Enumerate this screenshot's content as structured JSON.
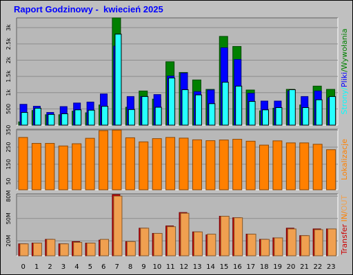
{
  "title": "Raport Godzinowy -  kwiecień 2025",
  "colors": {
    "background": "#c0c0c0",
    "plot_area": "#b8b8b8",
    "title": "#0000ff",
    "pages": "#008000",
    "files": "#0000ff",
    "hits": "#00ffff",
    "visits": "#ff8000",
    "transfer_in": "#cc0000",
    "transfer_out": "#f0a050"
  },
  "chart_data": [
    {
      "type": "bar",
      "categories": [
        "0",
        "1",
        "2",
        "3",
        "4",
        "5",
        "6",
        "7",
        "8",
        "9",
        "10",
        "11",
        "12",
        "13",
        "14",
        "15",
        "16",
        "17",
        "18",
        "19",
        "20",
        "21",
        "22",
        "23"
      ],
      "series": [
        {
          "name": "Strony",
          "values": [
            100,
            450,
            320,
            320,
            430,
            380,
            620,
            3300,
            550,
            1050,
            800,
            1950,
            1620,
            1390,
            1100,
            2730,
            2420,
            1080,
            440,
            520,
            1100,
            620,
            1200,
            1100
          ]
        },
        {
          "name": "Pliki",
          "values": [
            640,
            580,
            390,
            570,
            680,
            710,
            960,
            2430,
            880,
            880,
            940,
            1510,
            1600,
            1030,
            1080,
            2380,
            2020,
            980,
            740,
            740,
            1050,
            880,
            1050,
            840
          ]
        },
        {
          "name": "Wywołania",
          "values": [
            390,
            520,
            330,
            350,
            470,
            460,
            580,
            2800,
            480,
            880,
            550,
            1450,
            1090,
            930,
            660,
            1320,
            1200,
            730,
            470,
            540,
            1090,
            540,
            780,
            880
          ]
        }
      ],
      "yticks": [
        "500",
        "1k",
        "1.5k",
        "2k",
        "2.5k",
        "3k"
      ],
      "ylim": [
        0,
        3300
      ],
      "ylabel": [
        "Strony",
        "/",
        "Pliki",
        "/",
        "Wywołania"
      ]
    },
    {
      "type": "bar",
      "categories": [
        "0",
        "1",
        "2",
        "3",
        "4",
        "5",
        "6",
        "7",
        "8",
        "9",
        "10",
        "11",
        "12",
        "13",
        "14",
        "15",
        "16",
        "17",
        "18",
        "19",
        "20",
        "21",
        "22",
        "23"
      ],
      "series": [
        {
          "name": "Lokalizacje",
          "values": [
            307,
            272,
            272,
            257,
            270,
            302,
            347,
            350,
            305,
            281,
            300,
            307,
            303,
            293,
            288,
            292,
            296,
            285,
            262,
            287,
            275,
            275,
            267,
            235
          ]
        }
      ],
      "yticks": [
        "50",
        "150",
        "250",
        "350"
      ],
      "ylim": [
        0,
        355
      ],
      "ylabel": [
        "Lokalizacje"
      ]
    },
    {
      "type": "bar",
      "categories": [
        "0",
        "1",
        "2",
        "3",
        "4",
        "5",
        "6",
        "7",
        "8",
        "9",
        "10",
        "11",
        "12",
        "13",
        "14",
        "15",
        "16",
        "17",
        "18",
        "19",
        "20",
        "21",
        "22",
        "23"
      ],
      "series": [
        {
          "name": "IN",
          "values": [
            16,
            17,
            22,
            16,
            19,
            17,
            21,
            82,
            19,
            37,
            30,
            40,
            58,
            32,
            28,
            53,
            51,
            29,
            22,
            24,
            37,
            27,
            36,
            36
          ]
        },
        {
          "name": "OUT",
          "values": [
            16,
            17,
            22,
            16,
            18,
            17,
            22,
            80,
            19,
            37,
            30,
            39,
            57,
            32,
            29,
            53,
            51,
            29,
            22,
            24,
            36,
            27,
            35,
            36
          ]
        }
      ],
      "yticks": [
        "20M",
        "50M",
        "80M"
      ],
      "ylim": [
        0,
        83
      ],
      "ylabel": [
        "Transfer",
        " ",
        "IN",
        "/",
        "OUT"
      ]
    }
  ]
}
